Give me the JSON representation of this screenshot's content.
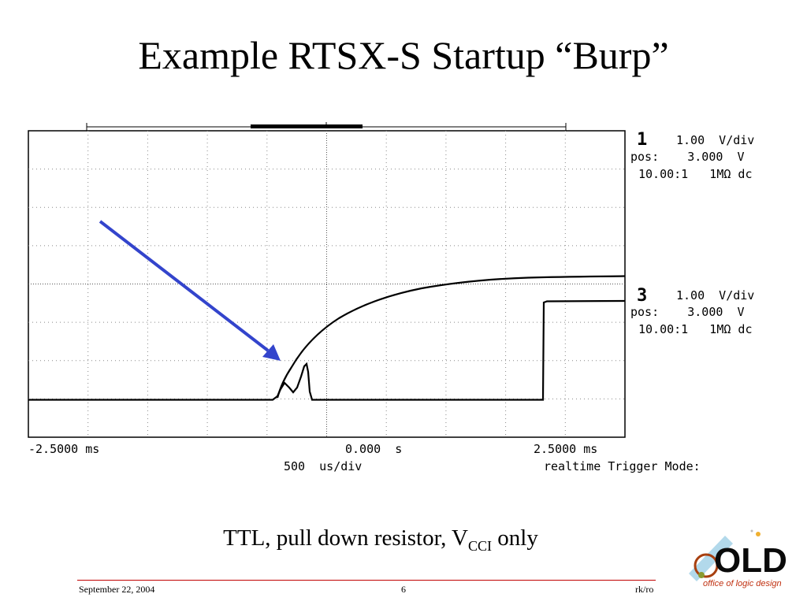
{
  "slide": {
    "title": "Example RTSX-S Startup “Burp”",
    "caption_main": "TTL, pull down resistor, V",
    "caption_sub": "CCI",
    "caption_tail": " only"
  },
  "footer": {
    "date": "September 22, 2004",
    "page": "6",
    "author": "rk/ro"
  },
  "logo": {
    "text": "OLD",
    "tagline": "office of logic design"
  },
  "scope": {
    "channel1": {
      "number": "1",
      "line1": "1.00  V/div",
      "line2": "pos:    3.000  V",
      "line3": "10.00:1   1MΩ dc"
    },
    "channel3": {
      "number": "3",
      "line1": "1.00  V/div",
      "line2": "pos:    3.000  V",
      "line3": "10.00:1   1MΩ dc"
    },
    "time_left": "-2.5000 ms",
    "time_center": "0.000  s",
    "time_right": "2.5000 ms",
    "timebase": "500  us/div",
    "mode": "realtime Trigger Mode:"
  },
  "colors": {
    "arrow": "#3344cc",
    "footer_rule": "#c00000",
    "trace": "#000000"
  }
}
